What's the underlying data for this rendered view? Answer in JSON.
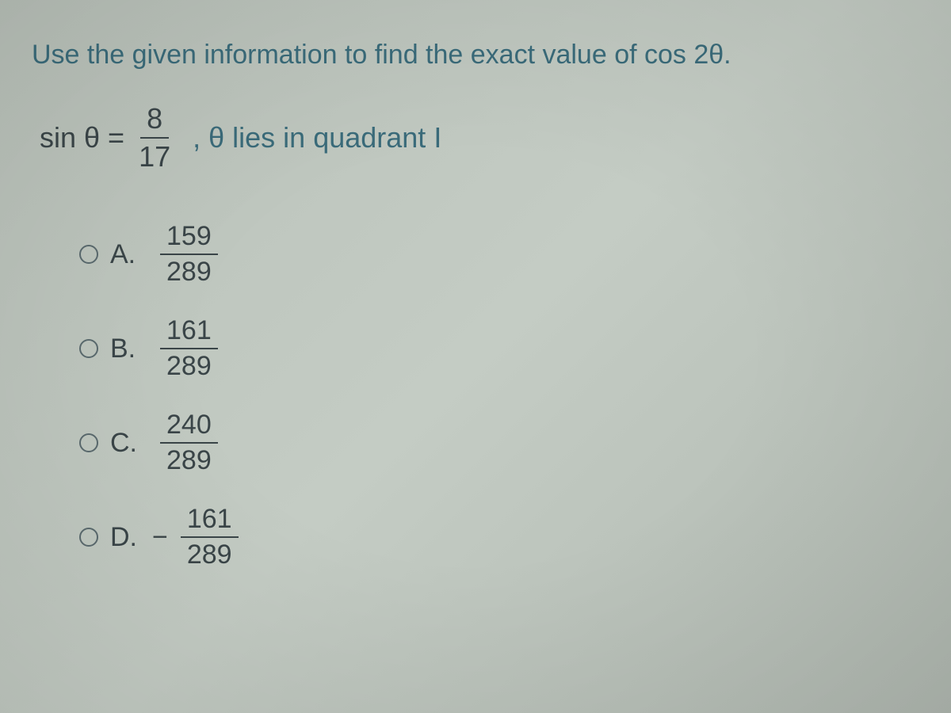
{
  "question": {
    "prompt": "Use the given information to find the exact value of cos 2θ.",
    "given": {
      "prefix": "sin θ =",
      "fraction_num": "8",
      "fraction_den": "17",
      "suffix": ", θ lies in quadrant I"
    }
  },
  "options": [
    {
      "label": "A.",
      "negative": false,
      "num": "159",
      "den": "289"
    },
    {
      "label": "B.",
      "negative": false,
      "num": "161",
      "den": "289"
    },
    {
      "label": "C.",
      "negative": false,
      "num": "240",
      "den": "289"
    },
    {
      "label": "D.",
      "negative": true,
      "num": "161",
      "den": "289"
    }
  ],
  "style": {
    "question_color": "#3a6b7a",
    "text_color": "#3a4548",
    "background_color": "#bcc4bc",
    "font_size_question": 34,
    "font_size_options": 34,
    "radio_border_color": "#5a6a6e"
  }
}
